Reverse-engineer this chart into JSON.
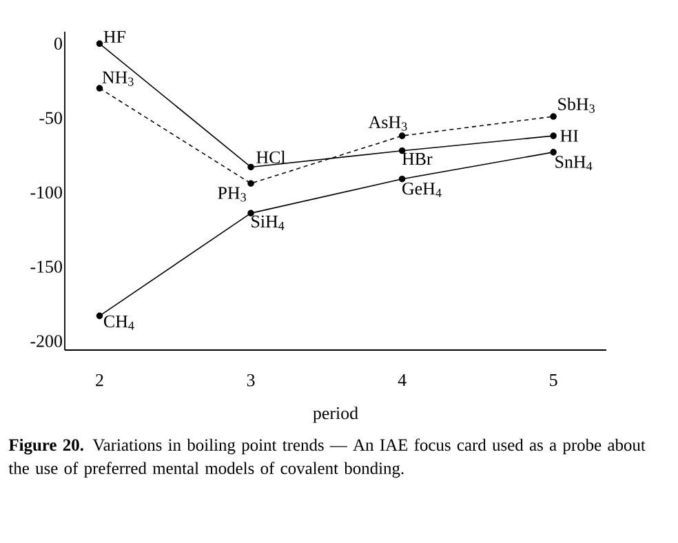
{
  "chart_data": {
    "type": "line",
    "xlabel": "period",
    "x": [
      2,
      3,
      4,
      5
    ],
    "series": [
      {
        "color": "#000000",
        "values": [
          0,
          -83,
          -72,
          -62
        ],
        "line_style": "solid"
      },
      {
        "color": "#000000",
        "values": [
          -30,
          -94,
          -62,
          -49
        ],
        "line_style": "dashed"
      },
      {
        "color": "#000000",
        "values": [
          -183,
          -114,
          -91,
          -73
        ],
        "line_style": "solid"
      }
    ],
    "marker": "circle",
    "xlim": [
      1.77,
      5.35
    ],
    "ylim": [
      -206,
      8
    ],
    "xticks": [
      2,
      3,
      4,
      5
    ],
    "yticks": [
      0,
      -50,
      -100,
      -150,
      -200
    ],
    "grid": false,
    "annotations": [
      {
        "text": "HF",
        "x": 2,
        "y": 0
      },
      {
        "text": "NH$_{3}$",
        "x": 2,
        "y": -30
      },
      {
        "text": "HCl",
        "x": 3,
        "y": -83
      },
      {
        "text": "PH$_{3}$",
        "x": 3,
        "y": -94
      },
      {
        "text": "SiH$_{4}$",
        "x": 3,
        "y": -114
      },
      {
        "text": "CH$_{4}$",
        "x": 2,
        "y": -183
      },
      {
        "text": "AsH$_{3}$",
        "x": 4,
        "y": -62
      },
      {
        "text": "HBr",
        "x": 4,
        "y": -72
      },
      {
        "text": "GeH$_{4}$",
        "x": 4,
        "y": -91
      },
      {
        "text": "SbH$_{3}$",
        "x": 5,
        "y": -49
      },
      {
        "text": "HI",
        "x": 5,
        "y": -62
      },
      {
        "text": "SnH$_{4}$",
        "x": 5,
        "y": -73
      },
      "**Figure 20.** Variations in boiling point trends — An IAE focus card used as a probe about the use of preferred mental models of covalent bonding."
    ]
  }
}
